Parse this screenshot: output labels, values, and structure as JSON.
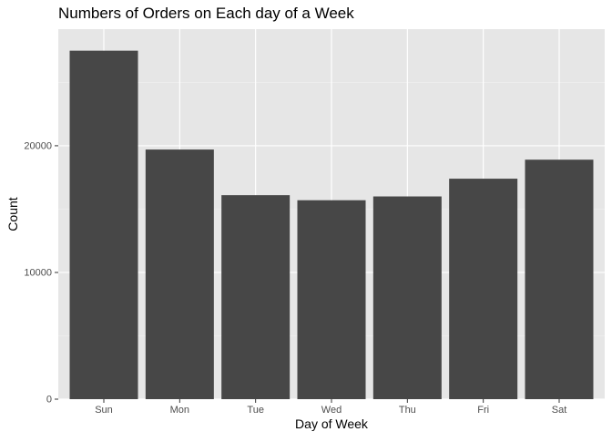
{
  "chart_data": {
    "type": "bar",
    "title": "Numbers of Orders on Each day of a Week",
    "xlabel": "Day of Week",
    "ylabel": "Count",
    "categories": [
      "Sun",
      "Mon",
      "Tue",
      "Wed",
      "Thu",
      "Fri",
      "Sat"
    ],
    "values": [
      27500,
      19700,
      16100,
      15700,
      16000,
      17400,
      18900
    ],
    "ylim": [
      0,
      29200
    ],
    "yticks": [
      0,
      10000,
      20000
    ],
    "ytick_labels": [
      "0",
      "10000",
      "20000"
    ],
    "grid": true,
    "legend": "none",
    "colors": {
      "bar": "#474747",
      "panel": "#e6e6e6",
      "grid_major": "#ffffff",
      "grid_minor": "#f1f1f1",
      "tick_text": "#4d4d4d",
      "text": "#000000"
    }
  }
}
